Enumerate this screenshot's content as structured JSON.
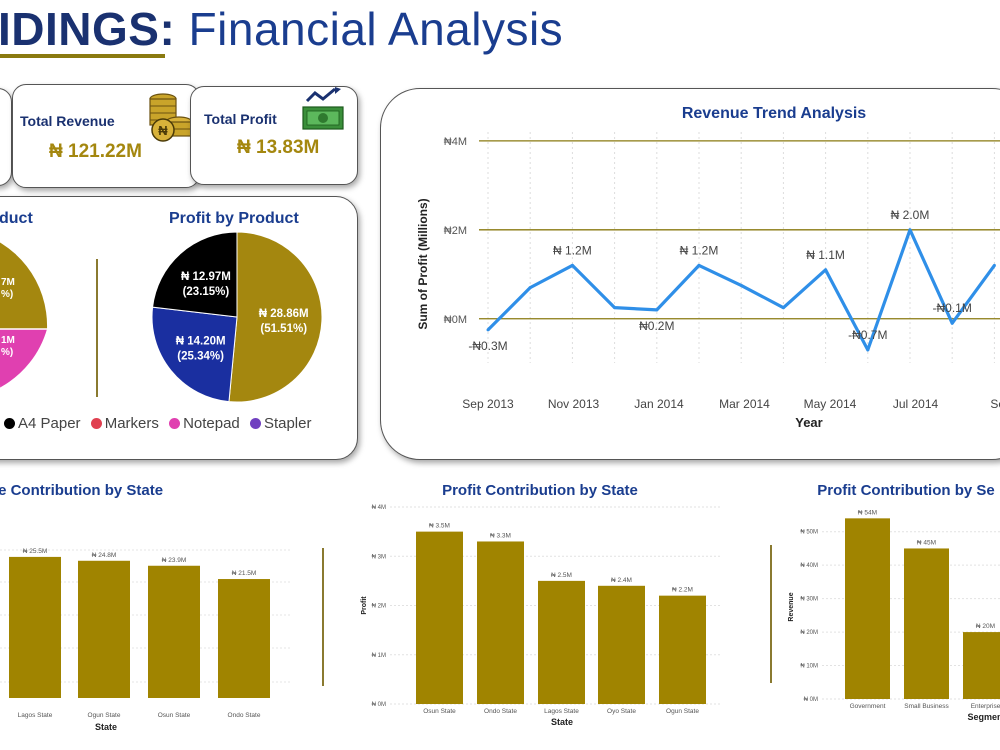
{
  "header": {
    "title_bold": "IDINGS:",
    "title_rest": " Financial Analysis"
  },
  "kpis": {
    "revenue": {
      "label": "Total Revenue",
      "value": "₦ 121.22M",
      "icon": "coins-icon"
    },
    "profit": {
      "label": "Total Profit",
      "value": "₦ 13.83M",
      "icon": "money-growth-icon"
    }
  },
  "pies": {
    "left_title": "duct",
    "left_labels": [
      "7M",
      "%)",
      "1M",
      "%)"
    ],
    "right_title": "Profit by Product",
    "legend": [
      {
        "name": "A4 Paper",
        "color": "#000000"
      },
      {
        "name": "Markers",
        "color": "#e04050"
      },
      {
        "name": "Notepad",
        "color": "#e040b0"
      },
      {
        "name": "Stapler",
        "color": "#7040c0"
      }
    ]
  },
  "colors": {
    "gold": "#a4870f",
    "olive_bar": "#a08400",
    "line_blue": "#2f8fe8",
    "navy": "#1a3170",
    "pie_blue": "#1a2fa0",
    "pie_pink": "#e040b0"
  },
  "chart_data": [
    {
      "type": "pie",
      "title": "Profit by Product",
      "slices": [
        {
          "label": "₦ 28.86M",
          "pct": "(51.51%)",
          "value": 28.86,
          "color": "#a4870f"
        },
        {
          "label": "₦ 14.20M",
          "pct": "(25.34%)",
          "value": 14.2,
          "color": "#1a2fa0"
        },
        {
          "label": "₦ 12.97M",
          "pct": "(23.15%)",
          "value": 12.97,
          "color": "#000000"
        }
      ]
    },
    {
      "type": "line",
      "title": "Revenue Trend Analysis",
      "xlabel": "Year",
      "ylabel": "Sum of Profit (Millions)",
      "ylim": [
        -0.5,
        4.2
      ],
      "yticks": [
        {
          "v": 0,
          "label": "₦0M"
        },
        {
          "v": 2,
          "label": "₦2M"
        },
        {
          "v": 4,
          "label": "₦4M"
        }
      ],
      "xticks": [
        "Sep 2013",
        "Nov 2013",
        "Jan 2014",
        "Mar 2014",
        "May 2014",
        "Jul 2014",
        "Sep"
      ],
      "values": [
        -0.25,
        0.7,
        1.2,
        0.25,
        0.2,
        1.2,
        0.75,
        0.25,
        1.1,
        -0.7,
        2.0,
        -0.1,
        1.2
      ],
      "data_labels": [
        {
          "i": 0,
          "text": "-₦0.3M",
          "pos": "below"
        },
        {
          "i": 2,
          "text": "₦ 1.2M",
          "pos": "above"
        },
        {
          "i": 4,
          "text": "₦0.2M",
          "pos": "below"
        },
        {
          "i": 5,
          "text": "₦ 1.2M",
          "pos": "above"
        },
        {
          "i": 8,
          "text": "₦ 1.1M",
          "pos": "above"
        },
        {
          "i": 9,
          "text": "-₦0.7M",
          "pos": "above"
        },
        {
          "i": 10,
          "text": "₦ 2.0M",
          "pos": "above"
        },
        {
          "i": 11,
          "text": "-₦0.1M",
          "pos": "above"
        }
      ],
      "grid": true
    },
    {
      "type": "bar",
      "title": "ue Contribution by State",
      "xlabel": "State",
      "categories": [
        "Lagos State",
        "Ogun State",
        "Osun State",
        "Ondo State"
      ],
      "values": [
        25.5,
        24.8,
        23.9,
        21.5
      ],
      "labels": [
        "₦ 25.5M",
        "₦ 24.8M",
        "₦ 23.9M",
        "₦ 21.5M"
      ],
      "ylim": [
        0,
        30
      ]
    },
    {
      "type": "bar",
      "title": "Profit Contribution by State",
      "xlabel": "State",
      "ylabel": "Profit",
      "categories": [
        "Osun State",
        "Ondo State",
        "Lagos State",
        "Oyo State",
        "Ogun State"
      ],
      "values": [
        3.5,
        3.3,
        2.5,
        2.4,
        2.2
      ],
      "labels": [
        "₦ 3.5M",
        "₦ 3.3M",
        "₦ 2.5M",
        "₦ 2.4M",
        "₦ 2.2M"
      ],
      "yticks": [
        {
          "v": 0,
          "label": "₦ 0M"
        },
        {
          "v": 1,
          "label": "₦ 1M"
        },
        {
          "v": 2,
          "label": "₦ 2M"
        },
        {
          "v": 3,
          "label": "₦ 3M"
        },
        {
          "v": 4,
          "label": "₦ 4M"
        }
      ],
      "ylim": [
        0,
        4
      ]
    },
    {
      "type": "bar",
      "title": "Profit Contribution by Se",
      "xlabel": "Segmen",
      "ylabel": "Revenue",
      "categories": [
        "Government",
        "Small Business",
        "Enterprise"
      ],
      "values": [
        54,
        45,
        20
      ],
      "labels": [
        "₦ 54M",
        "₦ 45M",
        "₦ 20M"
      ],
      "yticks": [
        {
          "v": 0,
          "label": "₦ 0M"
        },
        {
          "v": 10,
          "label": "₦ 10M"
        },
        {
          "v": 20,
          "label": "₦ 20M"
        },
        {
          "v": 30,
          "label": "₦ 30M"
        },
        {
          "v": 40,
          "label": "₦ 40M"
        },
        {
          "v": 50,
          "label": "₦ 50M"
        }
      ],
      "ylim": [
        0,
        55
      ]
    }
  ]
}
